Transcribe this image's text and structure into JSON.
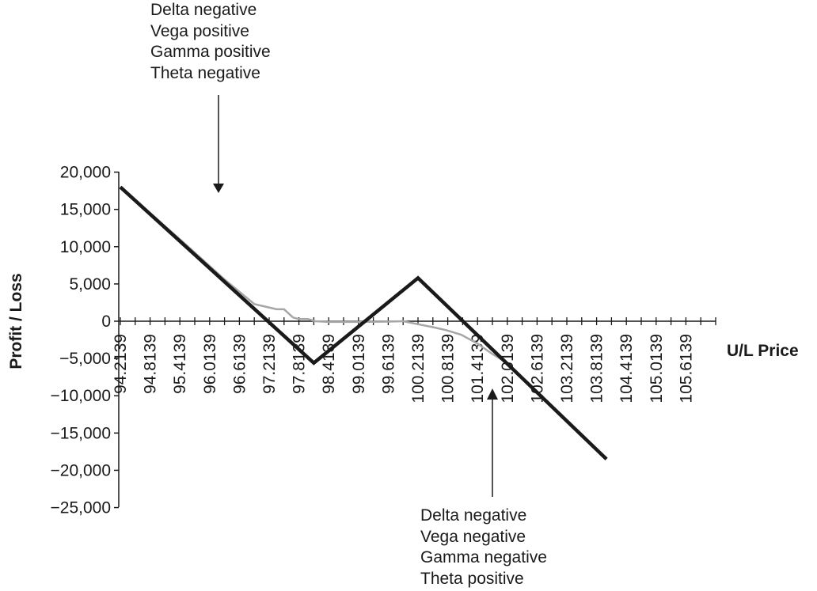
{
  "chart_data": {
    "type": "line",
    "xlabel": "U/L Price",
    "ylabel": "Profit / Loss",
    "ylim": [
      -25000,
      20000
    ],
    "yticks": [
      "20,000",
      "15,000",
      "10,000",
      "5,000",
      "0",
      "−5,000",
      "−10,000",
      "−15,000",
      "−20,000",
      "−25,000"
    ],
    "ytick_values": [
      20000,
      15000,
      10000,
      5000,
      0,
      -5000,
      -10000,
      -15000,
      -20000,
      -25000
    ],
    "categories": [
      "94.2139",
      "94.8139",
      "95.4139",
      "96.0139",
      "96.6139",
      "97.2139",
      "97.8139",
      "98.4139",
      "99.0139",
      "99.6139",
      "100.2139",
      "100.8139",
      "101.4139",
      "102.0139",
      "102.6139",
      "103.2139",
      "103.8139",
      "104.4139",
      "105.0139",
      "105.6139"
    ],
    "x_start": 94.2139,
    "x_step": 0.3,
    "grid": false,
    "series": [
      {
        "color": "#1a1a1a",
        "style": "thick",
        "x": [
          94.2139,
          98.1139,
          100.2139,
          104.0139
        ],
        "values": [
          18000,
          -5600,
          5800,
          -18500
        ]
      },
      {
        "color": "#a6a6a6",
        "style": "thin",
        "x": [
          94.2139,
          95.4139,
          96.3139,
          96.9139,
          97.3639,
          97.5139,
          97.6939,
          97.8139,
          97.9939,
          98.1439,
          98.4139,
          99.0139,
          99.6139,
          99.9139,
          100.2139,
          100.5139,
          100.7839,
          101.0839,
          101.4139,
          101.7139,
          102.0139,
          102.6139,
          103.2139,
          103.8139,
          104.0139
        ],
        "values": [
          18000,
          11000,
          5600,
          2300,
          1600,
          1600,
          500,
          300,
          300,
          0,
          -100,
          -100,
          -50,
          0,
          -400,
          -800,
          -1200,
          -1800,
          -3000,
          -4400,
          -5600,
          -9600,
          -13500,
          -17300,
          -18500
        ]
      }
    ],
    "annotations": [
      {
        "lines": [
          "Delta negative",
          "Vega positive",
          "Gamma positive",
          "Theta negative"
        ]
      },
      {
        "lines": [
          "Delta negative",
          "Vega negative",
          "Gamma negative",
          "Theta positive"
        ]
      }
    ]
  }
}
